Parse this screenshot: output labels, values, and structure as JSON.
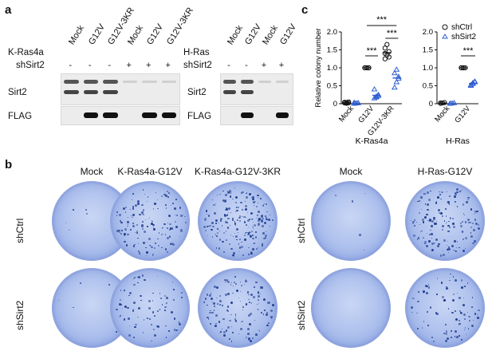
{
  "panel_a": {
    "letter": "a",
    "left": {
      "row_label": "K-Ras4a",
      "shrna_label": "shSirt2",
      "lanes": [
        "Mock",
        "G12V",
        "G12V-3KR",
        "Mock",
        "G12V",
        "G12V-3KR"
      ],
      "signs": [
        "-",
        "-",
        "-",
        "+",
        "+",
        "+"
      ],
      "sirt2": [
        1,
        1,
        1,
        0,
        0,
        0
      ],
      "flag": [
        0,
        1,
        1,
        0,
        1,
        1
      ]
    },
    "right": {
      "row_label": "H-Ras",
      "shrna_label": "shSirt2",
      "lanes": [
        "Mock",
        "G12V",
        "Mock",
        "G12V"
      ],
      "signs": [
        "-",
        "-",
        "+",
        "+"
      ],
      "sirt2": [
        1,
        1,
        0,
        0
      ],
      "flag": [
        0,
        1,
        0,
        1
      ]
    },
    "blot_labels": {
      "sirt2": "Sirt2",
      "flag": "FLAG"
    }
  },
  "panel_b": {
    "letter": "b",
    "left_columns": [
      "Mock",
      "K-Ras4a-G12V",
      "K-Ras4a-G12V-3KR"
    ],
    "right_columns": [
      "Mock",
      "H-Ras-G12V"
    ],
    "rows": [
      "shCtrl",
      "shSirt2"
    ],
    "colony_density": {
      "left": [
        [
          0.02,
          0.55,
          0.8
        ],
        [
          0.02,
          0.3,
          0.5
        ]
      ],
      "right": [
        [
          0.02,
          0.6
        ],
        [
          0.0,
          0.35
        ]
      ]
    }
  },
  "chart_data": {
    "letter": "c",
    "type": "scatter",
    "ylabel": "Relative colony number",
    "legend": [
      "shCtrl",
      "shSirt2"
    ],
    "colors": {
      "shCtrl": "#111111",
      "shSirt2": "#2f5fd0"
    },
    "panels": [
      {
        "xlabel": "K-Ras4a",
        "categories": [
          "Mock",
          "G12V",
          "G12V-3KR"
        ],
        "ylim": [
          0,
          2
        ],
        "yticks": [
          "0",
          "0.5",
          "1.0",
          "1.5",
          "2.0"
        ],
        "series": [
          {
            "name": "shCtrl",
            "values": [
              [
                0.02,
                0.03,
                0.05,
                0.04,
                0.01,
                0.02
              ],
              [
                1.0,
                1.0,
                1.0,
                1.0,
                1.0,
                1.0
              ],
              [
                1.25,
                1.35,
                1.45,
                1.55,
                1.65,
                1.3,
                1.4
              ]
            ]
          },
          {
            "name": "shSirt2",
            "values": [
              [
                0.0,
                0.01,
                0.02,
                0.03,
                0.01,
                0.02
              ],
              [
                0.15,
                0.2,
                0.25,
                0.4,
                0.18,
                0.22
              ],
              [
                0.45,
                0.6,
                0.7,
                0.85,
                0.95,
                0.75
              ]
            ]
          }
        ],
        "significance": [
          "***",
          "***",
          "***"
        ]
      },
      {
        "xlabel": "H-Ras",
        "categories": [
          "Mock",
          "G12V"
        ],
        "ylim": [
          0,
          2
        ],
        "yticks": [
          "0",
          "0.5",
          "1.0",
          "1.5",
          "2.0"
        ],
        "series": [
          {
            "name": "shCtrl",
            "values": [
              [
                0.01,
                0.02,
                0.03,
                0.02
              ],
              [
                1.0,
                1.0,
                1.0,
                1.0,
                1.0
              ]
            ]
          },
          {
            "name": "shSirt2",
            "values": [
              [
                0.0,
                0.01,
                0.02,
                0.01
              ],
              [
                0.5,
                0.55,
                0.6,
                0.52,
                0.58,
                0.62
              ]
            ]
          }
        ],
        "significance": [
          "***"
        ]
      }
    ]
  }
}
